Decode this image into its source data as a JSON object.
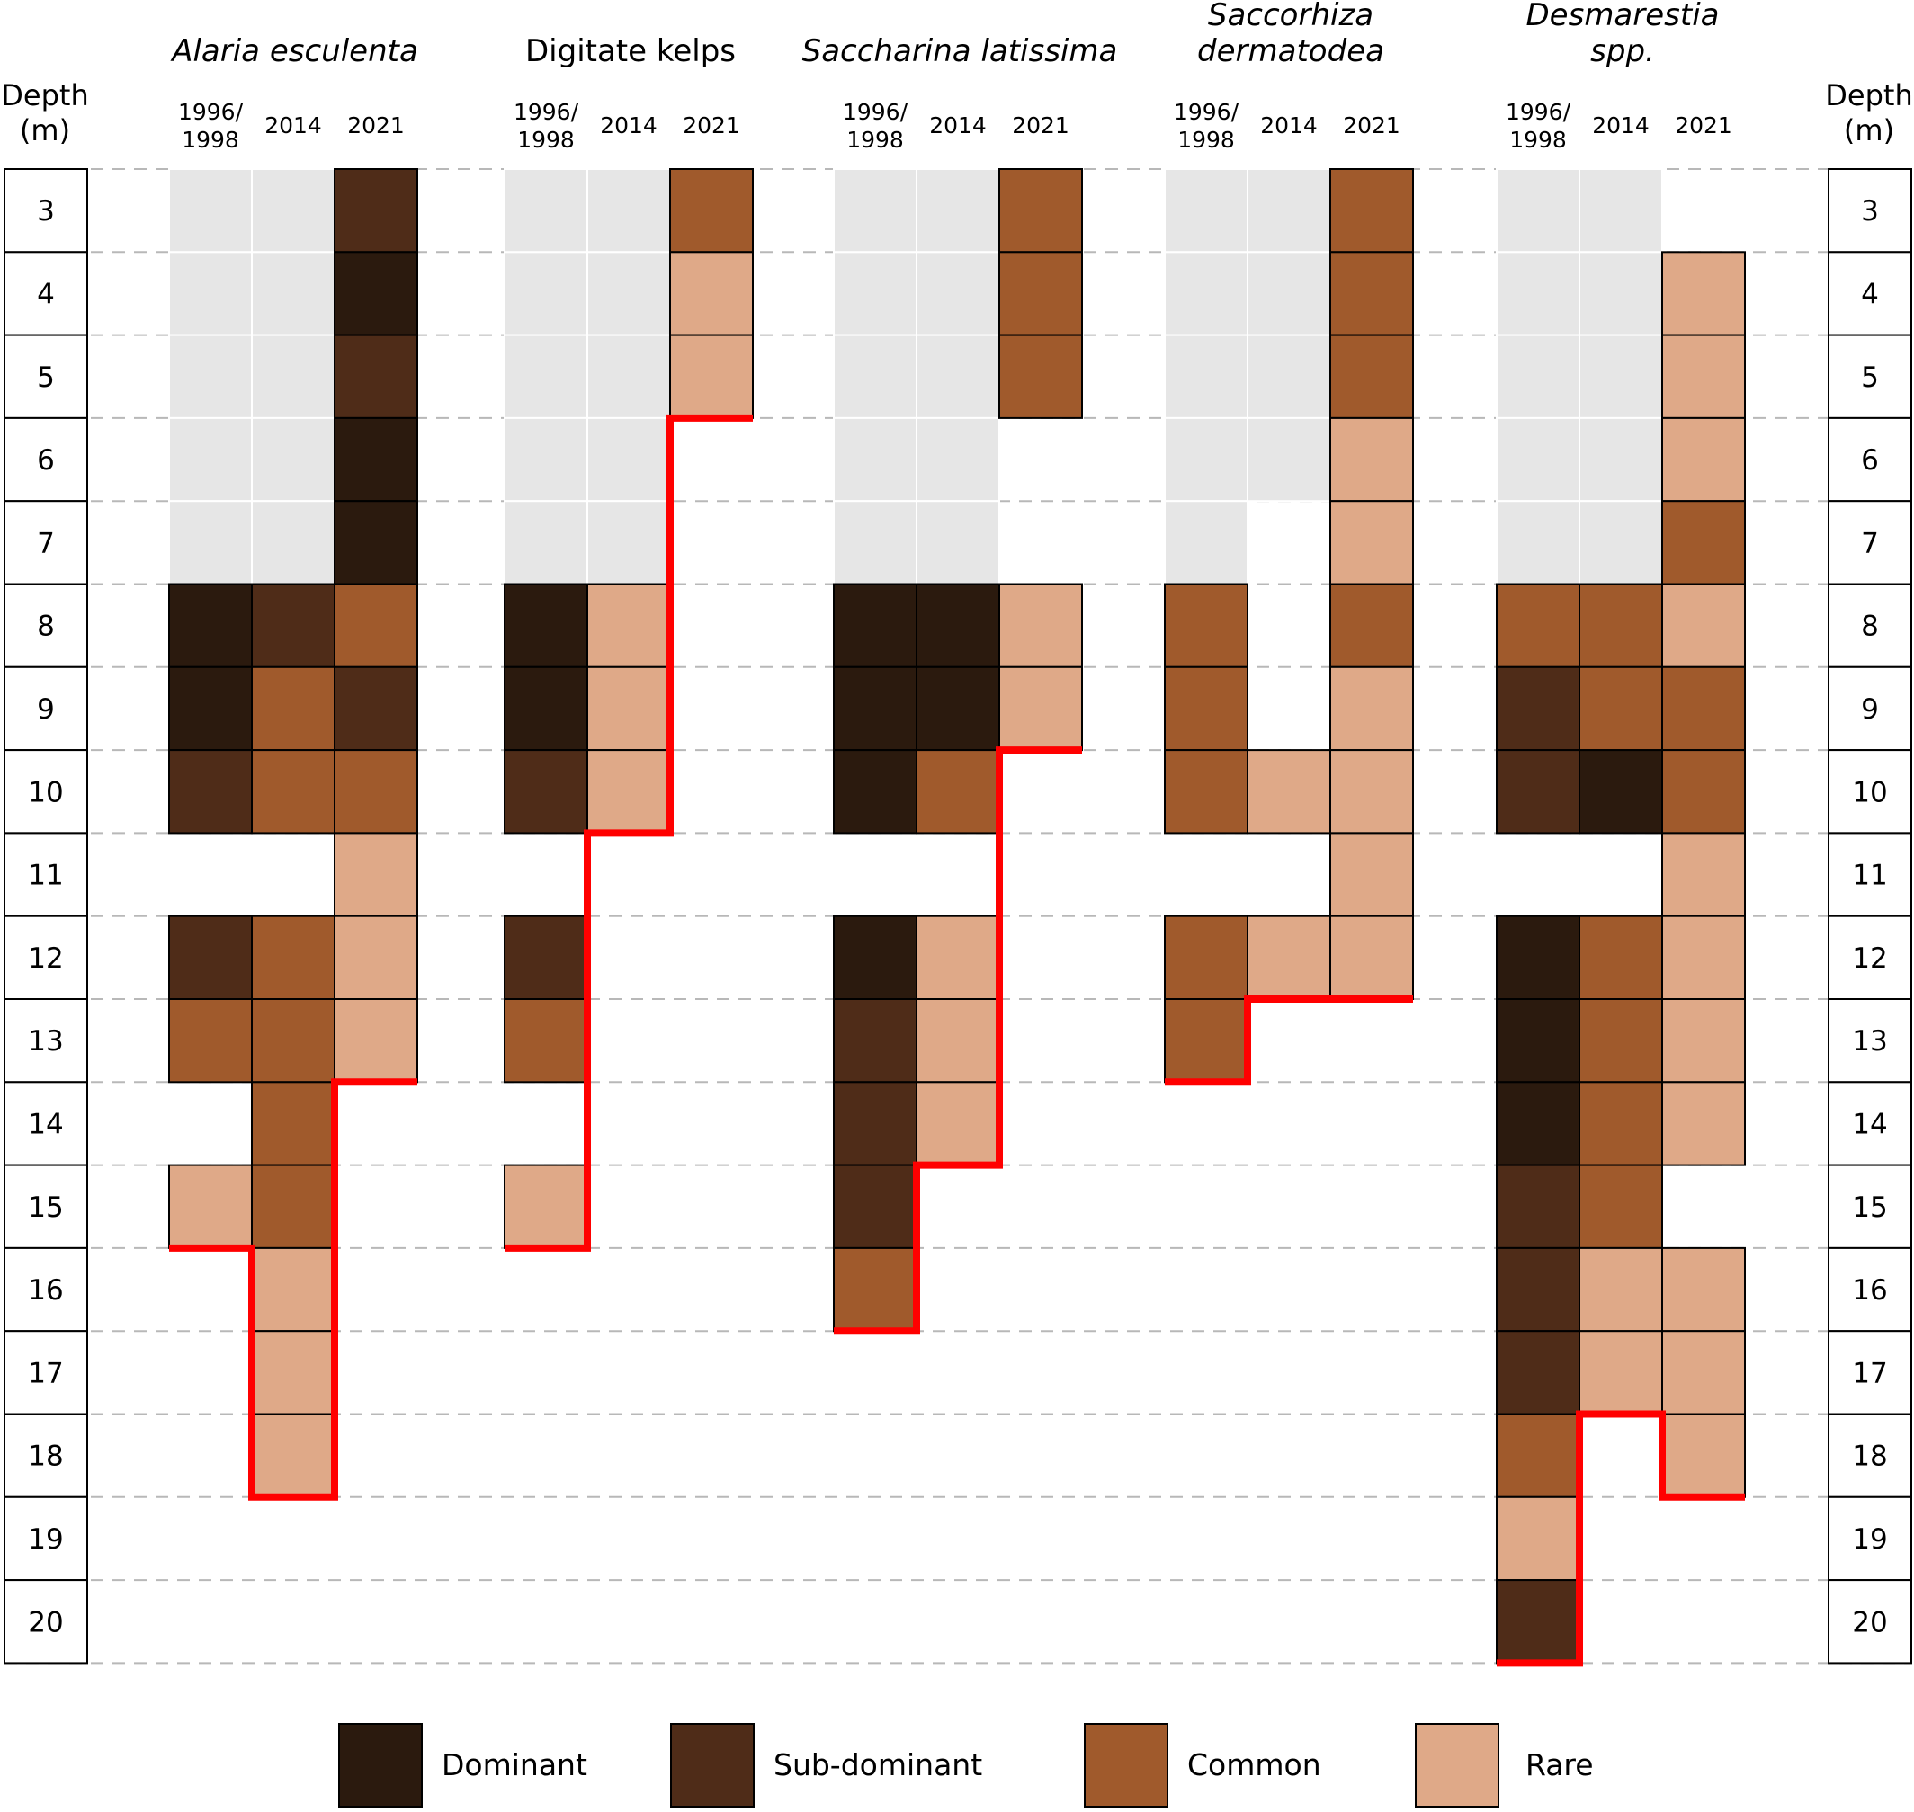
{
  "chart_data": {
    "type": "heatmap",
    "depth_axis": {
      "label_line1": "Depth",
      "label_line2": "(m)",
      "values": [
        3,
        4,
        5,
        6,
        7,
        8,
        9,
        10,
        11,
        12,
        13,
        14,
        15,
        16,
        17,
        18,
        19,
        20
      ]
    },
    "years": [
      {
        "line1": "1996/",
        "line2": "1998"
      },
      {
        "line1": "",
        "line2": "2014"
      },
      {
        "line1": "",
        "line2": "2021"
      }
    ],
    "legend": [
      {
        "key": "D",
        "label": "Dominant",
        "color": "#2b1a0e"
      },
      {
        "key": "S",
        "label": "Sub-dominant",
        "color": "#4f2c18"
      },
      {
        "key": "C",
        "label": "Common",
        "color": "#a05a2c"
      },
      {
        "key": "R",
        "label": "Rare",
        "color": "#dfa988"
      }
    ],
    "not_surveyed_color": "#e6e6e6",
    "lower_limit_color": "#ff0000",
    "species": [
      {
        "title_line1": "Alaria esculenta",
        "title_line2": "",
        "italic": true,
        "columns": [
          "XXXXXDDSxSCxRxxxxx",
          "XXXXXSCCxCCCCRRRxx",
          "SDSDDCSCRRRxxxxxxx"
        ],
        "lower_limit": [
          15,
          18,
          13
        ]
      },
      {
        "title_line1": "Digitate kelps",
        "title_line2": "",
        "italic": false,
        "columns": [
          "XXXXXDDSxSCxRxxxxx",
          "XXXXXRRRxxxxxxxxxx",
          "CRRxxxxxxxxxxxxxxx"
        ],
        "lower_limit": [
          15,
          10,
          5
        ]
      },
      {
        "title_line1": "Saccharina latissima",
        "title_line2": "",
        "italic": true,
        "columns": [
          "XXXXXDDDxDSSSCxxxx",
          "XXXXXDDCxRRRxxxxxx",
          "CCCxxRRxxxxxxxxxxx"
        ],
        "lower_limit": [
          16,
          14,
          9
        ]
      },
      {
        "title_line1": "Saccorhiza",
        "title_line2": "dermatodea",
        "italic": true,
        "columns": [
          "XXXXXCCCxCCxxxxxxx",
          "XXXXxxxRxRxxxxxxxx",
          "CCCRRCRRRRxxxxxxxx"
        ],
        "lower_limit": [
          13,
          12,
          12
        ]
      },
      {
        "title_line1": "Desmarestia",
        "title_line2": "spp.",
        "italic": true,
        "columns": [
          "XXXXXCSSxDDDSSSCRS",
          "XXXXXCCDxCCCCRRxxx",
          "xRRRCRCCRRRRxRRRxx"
        ],
        "lower_limit": [
          20,
          17,
          18
        ]
      }
    ]
  }
}
